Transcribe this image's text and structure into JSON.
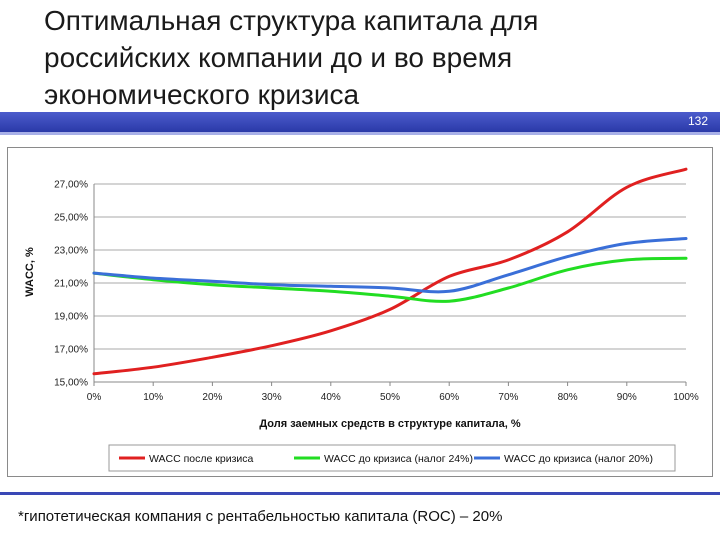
{
  "slide": {
    "title": "Оптимальная структура капитала для российских компании до и во время экономического кризиса",
    "slide_number": "132",
    "footnote": "*гипотетическая компания с рентабельностью капитала (ROC) – 20%"
  },
  "chart_data": {
    "type": "line",
    "xlabel": "Доля заемных средств в структуре капитала, %",
    "ylabel": "WACC, %",
    "x": [
      0,
      10,
      20,
      30,
      40,
      50,
      60,
      70,
      80,
      90,
      100
    ],
    "x_tick_labels": [
      "0%",
      "10%",
      "20%",
      "30%",
      "40%",
      "50%",
      "60%",
      "70%",
      "80%",
      "90%",
      "100%"
    ],
    "ylim": [
      15,
      27
    ],
    "y_ticks": [
      15,
      17,
      19,
      21,
      23,
      25,
      27
    ],
    "y_tick_labels": [
      "15,00%",
      "17,00%",
      "19,00%",
      "21,00%",
      "23,00%",
      "25,00%",
      "27,00%"
    ],
    "legend_position": "bottom",
    "grid": true,
    "series": [
      {
        "name": "WACC после кризиса",
        "color": "#e02020",
        "values": [
          15.5,
          15.9,
          16.5,
          17.2,
          18.1,
          19.4,
          21.4,
          22.4,
          24.1,
          26.8,
          27.9
        ]
      },
      {
        "name": "WACC до кризиса (налог 24%)",
        "color": "#22dd22",
        "values": [
          21.6,
          21.2,
          20.9,
          20.7,
          20.5,
          20.2,
          19.9,
          20.7,
          21.8,
          22.4,
          22.5
        ]
      },
      {
        "name": "WACC до кризиса (налог 20%)",
        "color": "#3a6fd8",
        "values": [
          21.6,
          21.3,
          21.1,
          20.9,
          20.8,
          20.7,
          20.5,
          21.5,
          22.6,
          23.4,
          23.7
        ]
      }
    ]
  }
}
